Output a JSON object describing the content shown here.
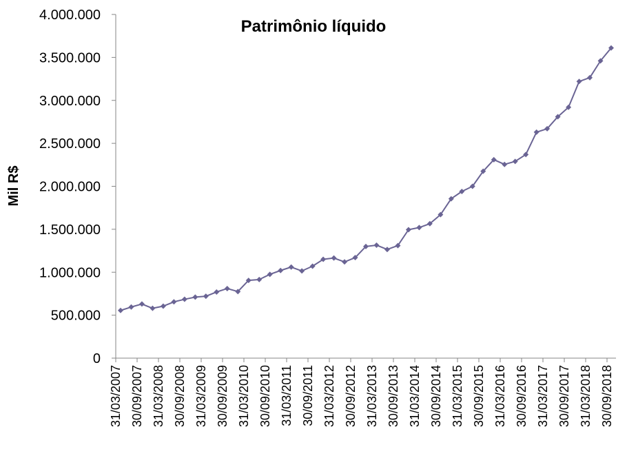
{
  "chart_data": {
    "type": "line",
    "title": "Patrimônio líquido",
    "xlabel": "",
    "ylabel": "Mil R$",
    "ylim": [
      0,
      4000000
    ],
    "y_ticks": [
      0,
      500000,
      1000000,
      1500000,
      2000000,
      2500000,
      3000000,
      3500000,
      4000000
    ],
    "y_tick_labels": [
      "0",
      "500.000",
      "1.000.000",
      "1.500.000",
      "2.000.000",
      "2.500.000",
      "3.000.000",
      "3.500.000",
      "4.000.000"
    ],
    "x_tick_labels": [
      "31/03/2007",
      "30/09/2007",
      "31/03/2008",
      "30/09/2008",
      "31/03/2009",
      "30/09/2009",
      "31/03/2010",
      "30/09/2010",
      "31/03/2011",
      "30/09/2011",
      "31/03/2012",
      "30/09/2012",
      "31/03/2013",
      "30/09/2013",
      "31/03/2014",
      "30/09/2014",
      "31/03/2015",
      "30/09/2015",
      "31/03/2016",
      "30/09/2016",
      "31/03/2017",
      "30/09/2017",
      "31/03/2018",
      "30/09/2018"
    ],
    "grid": false,
    "legend": "none",
    "line_color": "#6a6494",
    "series": [
      {
        "x": [
          "31/03/2007",
          "30/06/2007",
          "30/09/2007",
          "31/12/2007",
          "31/03/2008",
          "30/06/2008",
          "30/09/2008",
          "31/12/2008",
          "31/03/2009",
          "30/06/2009",
          "30/09/2009",
          "31/12/2009",
          "31/03/2010",
          "30/06/2010",
          "30/09/2010",
          "31/12/2010",
          "31/03/2011",
          "30/06/2011",
          "30/09/2011",
          "31/12/2011",
          "31/03/2012",
          "30/06/2012",
          "30/09/2012",
          "31/12/2012",
          "31/03/2013",
          "30/06/2013",
          "30/09/2013",
          "31/12/2013",
          "31/03/2014",
          "30/06/2014",
          "30/09/2014",
          "31/12/2014",
          "31/03/2015",
          "30/06/2015",
          "30/09/2015",
          "31/12/2015",
          "31/03/2016",
          "30/06/2016",
          "30/09/2016",
          "31/12/2016",
          "31/03/2017",
          "30/06/2017",
          "30/09/2017",
          "31/12/2017",
          "31/03/2018",
          "30/06/2018",
          "30/09/2018"
        ],
        "values": [
          555000,
          595000,
          630000,
          580000,
          605000,
          655000,
          685000,
          710000,
          720000,
          770000,
          810000,
          775000,
          905000,
          915000,
          975000,
          1020000,
          1060000,
          1015000,
          1070000,
          1150000,
          1165000,
          1120000,
          1170000,
          1300000,
          1315000,
          1265000,
          1310000,
          1495000,
          1520000,
          1565000,
          1670000,
          1855000,
          1940000,
          2000000,
          2175000,
          2310000,
          2255000,
          2290000,
          2370000,
          2630000,
          2670000,
          2810000,
          2920000,
          3220000,
          3265000,
          3460000,
          3610000
        ]
      }
    ]
  }
}
